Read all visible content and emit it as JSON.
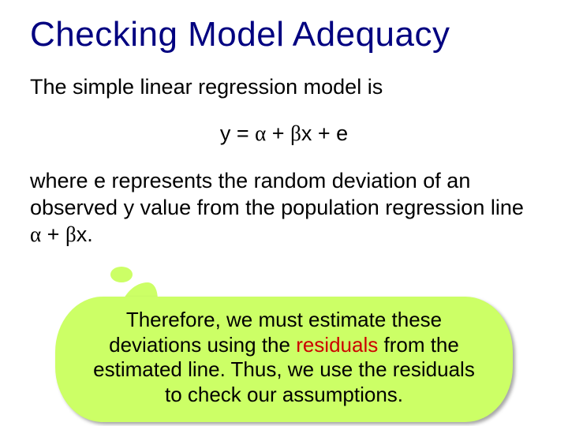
{
  "colors": {
    "title": "#000080",
    "body": "#000000",
    "bubble_bg": "#ccff66",
    "keyword": "#cc0000",
    "page_bg": "#ffffff"
  },
  "typography": {
    "family": "Comic Sans MS",
    "title_fontsize": 44,
    "body_fontsize": 27,
    "bubble_fontsize": 26
  },
  "title": "Checking Model Adequacy",
  "intro": "The simple linear regression model is",
  "equation": {
    "lhs": "y",
    "eq": " = ",
    "alpha": "α",
    "plus1": " + ",
    "beta": "β",
    "xvar": "x",
    "plus2": " + ",
    "err": "e"
  },
  "explain": {
    "pre": "where e represents the random deviation of an observed y value from the population regression line ",
    "alpha": "α",
    "plus": " + ",
    "beta": "β",
    "xvar": "x",
    "post": "."
  },
  "bubble": {
    "l1a": "Therefore, we must estimate these",
    "l2a": "deviations using the ",
    "l2kw": "residuals",
    "l2b": " from the",
    "l3a": "estimated line.  Thus, we use the residuals",
    "l4a": "to check our assumptions."
  }
}
